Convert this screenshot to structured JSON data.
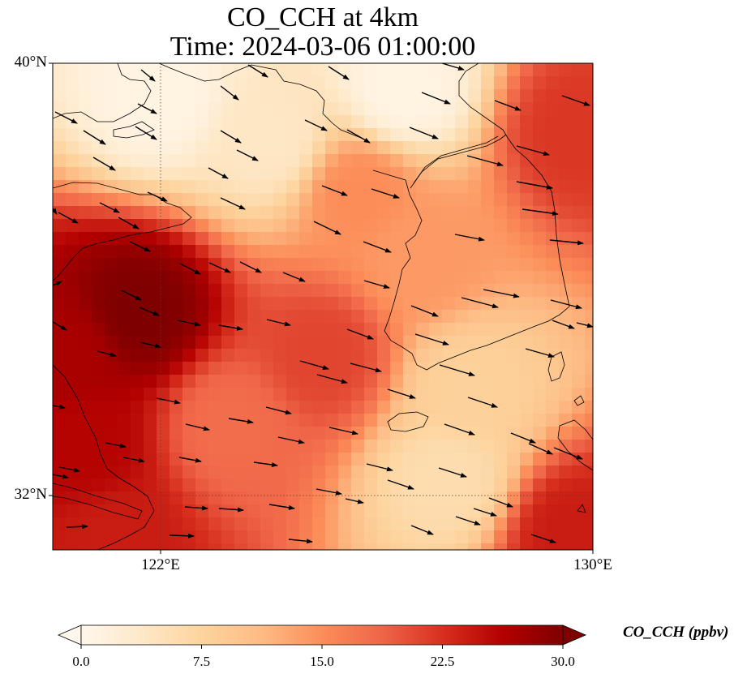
{
  "title": {
    "line1": "CO_CCH at 4km",
    "line2": "Time: 2024-03-06 01:00:00"
  },
  "map": {
    "lat_range": [
      31,
      40
    ],
    "lon_range": [
      120,
      130
    ],
    "lat_ticks": [
      {
        "value": 40,
        "label": "40°N"
      },
      {
        "value": 32,
        "label": "32°N"
      }
    ],
    "lon_ticks": [
      {
        "value": 122,
        "label": "122°E"
      },
      {
        "value": 130,
        "label": "130°E"
      }
    ],
    "gridlines": "dotted at 122°E and 32°N",
    "wind_vectors": "black arrows, predominantly west-northwest to east-southeast flow",
    "coastlines": "Shandong peninsula, Yellow Sea, Korean peninsula, Jeju island, East China coast"
  },
  "colorbar": {
    "cmap": "OrRd",
    "min": 0.0,
    "max": 30.0,
    "ticks": [
      "0.0",
      "7.5",
      "15.0",
      "22.5",
      "30.0"
    ],
    "extend": "both",
    "label": "CO_CCH (ppbv)",
    "colors": [
      "#fff7ec",
      "#fee8c8",
      "#fdd49e",
      "#fdbb84",
      "#fc8d59",
      "#ef6548",
      "#d7301f",
      "#b30000",
      "#7f0000"
    ]
  },
  "field_hotspots": [
    {
      "lon": 121.6,
      "lat": 35.4,
      "value": 30
    },
    {
      "lon": 120.3,
      "lat": 34.6,
      "value": 27
    },
    {
      "lon": 120.6,
      "lat": 32.9,
      "value": 26
    },
    {
      "lon": 121.2,
      "lat": 31.2,
      "value": 24
    },
    {
      "lon": 125.0,
      "lat": 34.6,
      "value": 21
    },
    {
      "lon": 123.3,
      "lat": 33.3,
      "value": 18
    },
    {
      "lon": 129.7,
      "lat": 38.7,
      "value": 22
    },
    {
      "lon": 129.6,
      "lat": 31.3,
      "value": 24
    },
    {
      "lon": 126.8,
      "lat": 36.4,
      "value": 14
    },
    {
      "lon": 125.7,
      "lat": 37.6,
      "value": 15
    },
    {
      "lon": 127.7,
      "lat": 34.0,
      "value": 8
    },
    {
      "lon": 122.0,
      "lat": 39.4,
      "value": 1
    },
    {
      "lon": 126.5,
      "lat": 39.5,
      "value": 1
    },
    {
      "lon": 124.0,
      "lat": 38.6,
      "value": 4
    },
    {
      "lon": 127.3,
      "lat": 32.3,
      "value": 6
    }
  ]
}
